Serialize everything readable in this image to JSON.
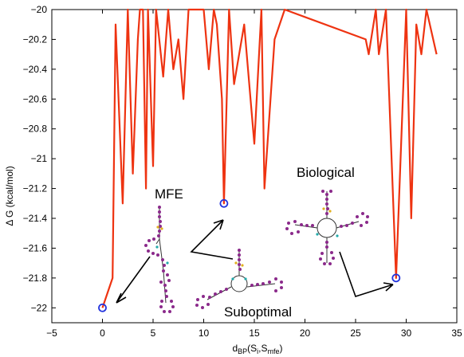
{
  "chart_data": {
    "type": "line",
    "xlabel": {
      "base": "d",
      "sub1": "BP",
      "mid": "(S",
      "sub2": "i",
      "mid2": ",S",
      "sub3": "mfe",
      "end": ")"
    },
    "ylabel": "Δ G (kcal/mol)",
    "xlim": [
      -5,
      35
    ],
    "ylim": [
      -22.1,
      -20
    ],
    "xticks": [
      -5,
      0,
      5,
      10,
      15,
      20,
      25,
      30,
      35
    ],
    "xtick_labels": [
      "−5",
      "0",
      "5",
      "10",
      "15",
      "20",
      "25",
      "30",
      "35"
    ],
    "yticks": [
      -22,
      -21.8,
      -21.6,
      -21.4,
      -21.2,
      -21,
      -20.8,
      -20.6,
      -20.4,
      -20.2,
      -20
    ],
    "ytick_labels": [
      "−22",
      "−21.8",
      "−21.6",
      "−21.4",
      "−21.2",
      "−21",
      "−20.8",
      "−20.6",
      "−20.4",
      "−20.2",
      "−20"
    ],
    "series": [
      {
        "color": "#ee3311",
        "x": [
          0,
          1,
          1.3,
          2,
          2.5,
          3,
          3.5,
          3.7,
          4,
          4.3,
          4.5,
          5,
          5.3,
          6,
          6.5,
          7,
          7.5,
          8,
          8.5,
          9,
          9.2,
          10,
          10.5,
          11,
          11.3,
          11.8,
          12,
          12.5,
          13,
          14,
          15,
          15.7,
          16,
          17,
          18,
          26,
          26.3,
          27,
          27.3,
          28,
          29,
          30,
          30.5,
          31,
          31.5,
          32,
          33
        ],
        "y": [
          -22,
          -21.8,
          -20.1,
          -21.3,
          -20,
          -21.1,
          -20.2,
          -20,
          -20,
          -21.2,
          -20,
          -21.05,
          -20,
          -20.45,
          -20,
          -20.4,
          -20.2,
          -20.6,
          -20,
          -20,
          -20,
          -20,
          -20.4,
          -20,
          -20.1,
          -20.6,
          -21.3,
          -20,
          -20.5,
          -20.1,
          -20.9,
          -20,
          -21.2,
          -20.2,
          -20,
          -20.2,
          -20.3,
          -20,
          -20.3,
          -20,
          -21.8,
          -20,
          -21.4,
          -20.1,
          -20.3,
          -20,
          -20.3
        ]
      }
    ],
    "highlighted_points": [
      {
        "x": 0,
        "y": -22,
        "color": "#2233dd"
      },
      {
        "x": 12,
        "y": -21.3,
        "color": "#2233dd"
      },
      {
        "x": 29,
        "y": -21.8,
        "color": "#2233dd"
      }
    ],
    "annotations": [
      {
        "text": "MFE"
      },
      {
        "text": "Biological"
      },
      {
        "text": "Suboptimal"
      }
    ],
    "grid": false,
    "legend": "none"
  }
}
